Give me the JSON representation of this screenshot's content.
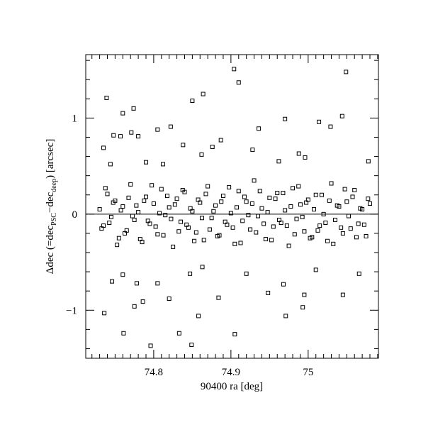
{
  "chart_data": {
    "type": "scatter",
    "xlabel": "90400 ra [deg]",
    "ylabel_parts": [
      "Δdec (=dec",
      "PSC",
      "−dec",
      "deep",
      ") [arcsec]"
    ],
    "xlim": [
      74.712,
      75.091
    ],
    "ylim": [
      -1.5,
      1.66
    ],
    "xticks": [
      74.8,
      74.9,
      75
    ],
    "yticks": [
      {
        "value": -1,
        "label": "−1"
      },
      0,
      1
    ],
    "xminorticks": [
      74.72,
      74.73,
      74.74,
      74.75,
      74.76,
      74.77,
      74.78,
      74.79,
      74.81,
      74.82,
      74.83,
      74.84,
      74.85,
      74.86,
      74.87,
      74.88,
      74.89,
      74.91,
      74.92,
      74.93,
      74.94,
      74.95,
      74.96,
      74.97,
      74.98,
      74.99,
      75.01,
      75.02,
      75.03,
      75.04,
      75.05,
      75.06,
      75.07,
      75.08,
      75.09
    ],
    "yminorticks": [
      -1.4,
      -1.2,
      -0.8,
      -0.6,
      -0.4,
      -0.2,
      0.2,
      0.4,
      0.6,
      0.8,
      1.2,
      1.4,
      1.6
    ],
    "hline": 0,
    "color": "#000000",
    "x": [
      74.73,
      74.735,
      74.74,
      74.745,
      74.75,
      74.755,
      74.76,
      74.765,
      74.77,
      74.775,
      74.78,
      74.785,
      74.79,
      74.795,
      74.8,
      74.805,
      74.81,
      74.815,
      74.82,
      74.825,
      74.83,
      74.835,
      74.84,
      74.845,
      74.85,
      74.855,
      74.86,
      74.865,
      74.87,
      74.875,
      74.88,
      74.885,
      74.89,
      74.895,
      74.9,
      74.905,
      74.91,
      74.915,
      74.92,
      74.925,
      74.93,
      74.935,
      74.94,
      74.945,
      74.95,
      74.955,
      74.96,
      74.965,
      74.97,
      74.975,
      74.98,
      74.985,
      74.99,
      74.995,
      75,
      75.005,
      75.01,
      75.015,
      75.02,
      75.025,
      75.03,
      75.035,
      75.04,
      75.045,
      75.05,
      75.055,
      75.06,
      75.065,
      75.07,
      75.075,
      75.08,
      74.7325,
      74.7375,
      74.7425,
      74.7475,
      74.7525,
      74.7575,
      74.7625,
      74.7675,
      74.7725,
      74.7775,
      74.7825,
      74.7875,
      74.7925,
      74.7975,
      74.8025,
      74.8075,
      74.8125,
      74.8175,
      74.8225,
      74.8275,
      74.8325,
      74.8375,
      74.8425,
      74.8475,
      74.8525,
      74.8575,
      74.8625,
      74.8675,
      74.8725,
      74.8775,
      74.8825,
      74.8875,
      74.8925,
      74.8975,
      74.9025,
      74.9075,
      74.9125,
      74.9175,
      74.9225,
      74.9275,
      74.9325,
      74.9375,
      74.9425,
      74.9475,
      74.9525,
      74.9575,
      74.9625,
      74.9675,
      74.9725,
      74.9775,
      74.9825,
      74.9875,
      74.9925,
      74.9975,
      75.0025,
      75.0075,
      75.0125,
      75.0175,
      75.0225,
      75.0275,
      75.0325,
      75.0375,
      75.0425,
      75.0475,
      75.0525,
      75.0575,
      75.0625,
      75.0675,
      75.0725,
      75.0775,
      74.904,
      74.91,
      75.049,
      74.864,
      74.739,
      74.774,
      74.85,
      74.796,
      74.849,
      74.905,
      74.761,
      74.833,
      74.736,
      74.858,
      74.971,
      74.993,
      74.775,
      74.735,
      74.744,
      74.748,
      74.757,
      74.76,
      74.771,
      74.78,
      74.79,
      74.805,
      74.812,
      74.822,
      74.838,
      74.862,
      74.876,
      74.887,
      74.928,
      74.936,
      74.962,
      74.97,
      74.988,
      74.996,
      75.014,
      75.029,
      75.044,
      75.078,
      74.746,
      74.76,
      74.778,
      74.786,
      74.805,
      74.82,
      74.847,
      74.863,
      74.884,
      74.92,
      74.948,
      74.968,
      74.995,
      75.01,
      75.045,
      75.066
    ],
    "y": [
      0.05,
      -0.12,
      0.21,
      -0.03,
      0.14,
      -0.25,
      0.08,
      -0.17,
      0.31,
      -0.06,
      0.02,
      -0.29,
      0.18,
      -0.1,
      0.11,
      -0.21,
      0.26,
      -0.01,
      0.07,
      -0.34,
      0.16,
      -0.08,
      0.23,
      -0.14,
      0.03,
      -0.19,
      0.12,
      -0.27,
      0.29,
      -0.04,
      0.09,
      -0.22,
      0.19,
      -0.11,
      0.01,
      -0.31,
      0.24,
      -0.07,
      0.13,
      -0.16,
      0.35,
      -0.02,
      0.06,
      -0.26,
      0.17,
      -0.13,
      0.22,
      -0.09,
      0.04,
      -0.33,
      0.27,
      -0.05,
      0.1,
      -0.18,
      0.15,
      -0.24,
      0.2,
      -0.12,
      0,
      -0.28,
      0.32,
      -0.06,
      0.08,
      -0.2,
      0.13,
      -0.15,
      0.25,
      -0.1,
      0.05,
      -0.23,
      0.11,
      -0.15,
      0.27,
      -0.09,
      0.12,
      -0.32,
      0.04,
      -0.2,
      0.17,
      -0.02,
      0.09,
      -0.26,
      0.14,
      -0.07,
      0.3,
      -0.13,
      0.01,
      -0.22,
      0.19,
      -0.05,
      0.1,
      -0.18,
      0.25,
      -0.11,
      0.06,
      -0.28,
      0.15,
      -0.04,
      0.21,
      -0.16,
      0.03,
      -0.23,
      0.13,
      -0.08,
      0.28,
      -0.14,
      0.07,
      -0.3,
      0.18,
      -0.01,
      0.11,
      -0.19,
      0.24,
      -0.1,
      0.02,
      -0.27,
      0.16,
      -0.06,
      0.22,
      -0.12,
      0.08,
      -0.21,
      0.29,
      -0.03,
      0.12,
      -0.25,
      0.05,
      -0.17,
      0.2,
      -0.09,
      0.14,
      -0.31,
      0.09,
      -0.14,
      0.26,
      -0.02,
      0.18,
      -0.24,
      0.06,
      -0.11,
      0.16,
      1.51,
      1.37,
      1.48,
      1.25,
      1.21,
      1.1,
      1.18,
      -1.37,
      -1.36,
      -1.25,
      -1.24,
      -1.24,
      -1.03,
      -1.06,
      -1.06,
      -0.97,
      -0.96,
      0.69,
      0.52,
      0.82,
      0.81,
      1.05,
      0.85,
      0.81,
      0.54,
      0.88,
      0.52,
      0.91,
      0.72,
      0.62,
      0.7,
      0.77,
      0.67,
      0.89,
      0.55,
      0.99,
      0.63,
      0.59,
      0.96,
      0.91,
      1.02,
      0.55,
      -0.7,
      -0.63,
      -0.72,
      -0.91,
      -0.72,
      -0.88,
      -0.62,
      -0.55,
      -0.87,
      -0.62,
      -0.82,
      -0.73,
      -0.84,
      -0.58,
      -0.84,
      -0.62
    ]
  }
}
